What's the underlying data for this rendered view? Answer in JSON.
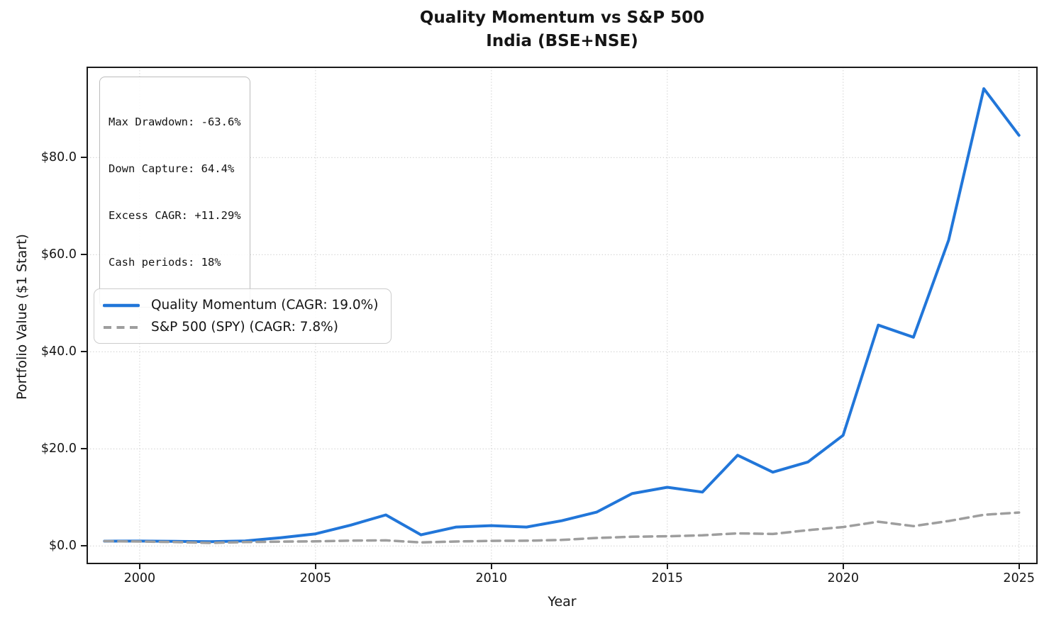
{
  "chart_data": {
    "type": "line",
    "title": "Quality Momentum vs S&P 500",
    "subtitle": "India (BSE+NSE)",
    "xlabel": "Year",
    "ylabel": "Portfolio Value ($1 Start)",
    "xlim": [
      1998.5,
      2025.52
    ],
    "ylim": [
      -3.6,
      98.6
    ],
    "x_ticks": [
      2000,
      2005,
      2010,
      2015,
      2020,
      2025
    ],
    "y_ticks": [
      0,
      20,
      40,
      60,
      80
    ],
    "y_tick_labels": [
      "$0.0",
      "$20.0",
      "$40.0",
      "$60.0",
      "$80.0"
    ],
    "grid": true,
    "grid_style": "dotted",
    "legend_position": "center left",
    "x": [
      1999,
      2000,
      2001,
      2002,
      2003,
      2004,
      2005,
      2006,
      2007,
      2008,
      2009,
      2010,
      2011,
      2012,
      2013,
      2014,
      2015,
      2016,
      2017,
      2018,
      2019,
      2020,
      2021,
      2022,
      2023,
      2024,
      2025
    ],
    "series": [
      {
        "name": "Quality Momentum  (CAGR: 19.0%)",
        "color": "#2176d9",
        "line_style": "solid",
        "line_width": 4,
        "values": [
          1.0,
          1.02,
          0.95,
          0.9,
          1.05,
          1.7,
          2.5,
          4.3,
          6.4,
          2.3,
          3.9,
          4.2,
          3.9,
          5.2,
          7.0,
          10.8,
          12.1,
          11.1,
          18.7,
          15.2,
          17.3,
          22.8,
          45.5,
          43.0,
          63.0,
          94.2,
          84.6
        ]
      },
      {
        "name": "S&P 500 (SPY)  (CAGR: 7.8%)",
        "color": "#9e9e9e",
        "line_style": "dashed",
        "line_width": 3.5,
        "values": [
          1.0,
          0.92,
          0.81,
          0.63,
          0.81,
          0.9,
          0.95,
          1.1,
          1.16,
          0.73,
          0.92,
          1.06,
          1.08,
          1.25,
          1.65,
          1.9,
          2.0,
          2.2,
          2.6,
          2.48,
          3.26,
          3.9,
          5.0,
          4.1,
          5.14,
          6.43,
          6.9
        ]
      }
    ],
    "stats_box": {
      "lines": [
        "Max Drawdown: -63.6%",
        "Down Capture: 64.4%",
        "Excess CAGR: +11.29%",
        "Cash periods: 18%"
      ]
    }
  },
  "colors": {
    "accent_blue": "#2176d9",
    "benchmark_gray": "#9e9e9e",
    "gridline": "#d4d4d4",
    "spine": "#1a1a1a"
  }
}
